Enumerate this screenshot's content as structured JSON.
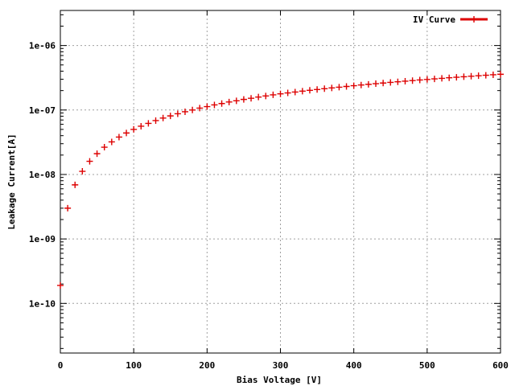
{
  "chart_data": {
    "type": "scatter",
    "title": "",
    "xlabel": "Bias Voltage [V]",
    "ylabel": "Leakage Current[A]",
    "xlim": [
      0,
      600
    ],
    "ylim": [
      1.7e-11,
      3.5e-06
    ],
    "yscale": "log",
    "grid": true,
    "legend_position": "top-right",
    "xticks": [
      0,
      100,
      200,
      300,
      400,
      500,
      600
    ],
    "xtick_labels": [
      "0",
      "100",
      "200",
      "300",
      "400",
      "500",
      "600"
    ],
    "yticks": [
      1e-10,
      1e-09,
      1e-08,
      1e-07,
      1e-06
    ],
    "ytick_labels": [
      "1e-10",
      "1e-09",
      "1e-08",
      "1e-07",
      "1e-06"
    ],
    "series": [
      {
        "name": "IV Curve",
        "color": "#dd0000",
        "marker": "plus",
        "x": [
          0,
          10,
          20,
          30,
          40,
          50,
          60,
          70,
          80,
          90,
          100,
          110,
          120,
          130,
          140,
          150,
          160,
          170,
          180,
          190,
          200,
          210,
          220,
          230,
          240,
          250,
          260,
          270,
          280,
          290,
          300,
          310,
          320,
          330,
          340,
          350,
          360,
          370,
          380,
          390,
          400,
          410,
          420,
          430,
          440,
          450,
          460,
          470,
          480,
          490,
          500,
          510,
          520,
          530,
          540,
          550,
          560,
          570,
          580,
          590,
          600
        ],
        "y": [
          1.9e-10,
          3e-09,
          6.9e-09,
          1.12e-08,
          1.6e-08,
          2.1e-08,
          2.65e-08,
          3.2e-08,
          3.8e-08,
          4.4e-08,
          5e-08,
          5.6e-08,
          6.2e-08,
          6.85e-08,
          7.5e-08,
          8.1e-08,
          8.75e-08,
          9.4e-08,
          1e-07,
          1.07e-07,
          1.13e-07,
          1.2e-07,
          1.26e-07,
          1.33e-07,
          1.39e-07,
          1.46e-07,
          1.52e-07,
          1.59e-07,
          1.65e-07,
          1.72e-07,
          1.78e-07,
          1.84e-07,
          1.9e-07,
          1.96e-07,
          2.02e-07,
          2.08e-07,
          2.14e-07,
          2.2e-07,
          2.26e-07,
          2.32e-07,
          2.38e-07,
          2.44e-07,
          2.5e-07,
          2.56e-07,
          2.62e-07,
          2.68e-07,
          2.74e-07,
          2.8e-07,
          2.86e-07,
          2.92e-07,
          2.98e-07,
          3.04e-07,
          3.1e-07,
          3.16e-07,
          3.22e-07,
          3.28e-07,
          3.34e-07,
          3.4e-07,
          3.46e-07,
          3.52e-07,
          3.58e-07
        ]
      }
    ]
  }
}
